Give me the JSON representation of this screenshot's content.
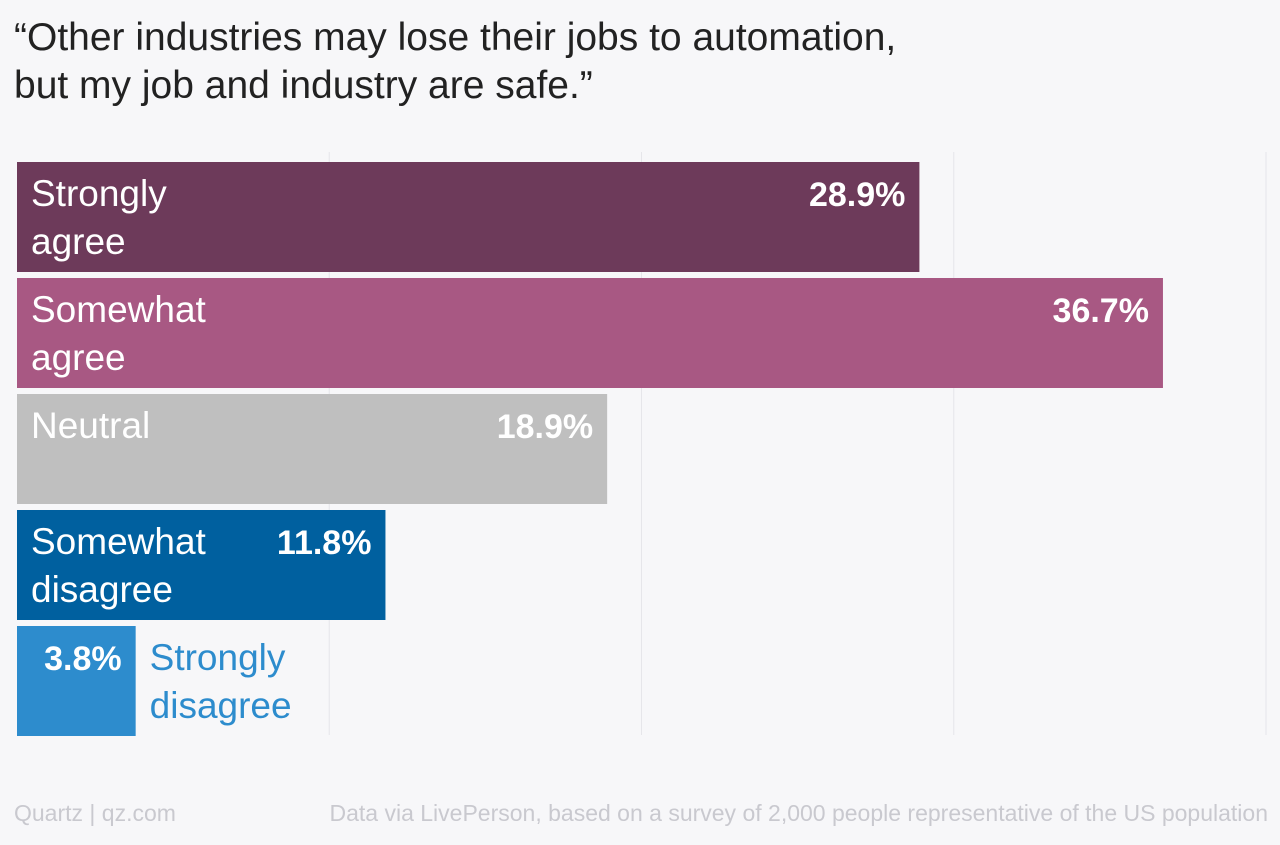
{
  "title_lines": [
    "“Other industries may lose their jobs to automation,",
    "but my job and industry are safe.”"
  ],
  "chart_data": {
    "type": "bar",
    "orientation": "horizontal",
    "title": "“Other industries may lose their jobs to automation, but my job and industry are safe.”",
    "categories": [
      "Strongly agree",
      "Somewhat agree",
      "Neutral",
      "Somewhat disagree",
      "Strongly disagree"
    ],
    "category_label_lines": [
      [
        "Strongly",
        "agree"
      ],
      [
        "Somewhat",
        "agree"
      ],
      [
        "Neutral"
      ],
      [
        "Somewhat",
        "disagree"
      ],
      [
        "Strongly",
        "disagree"
      ]
    ],
    "values": [
      28.9,
      36.7,
      18.9,
      11.8,
      3.8
    ],
    "value_labels": [
      "28.9%",
      "36.7%",
      "18.9%",
      "11.8%",
      "3.8%"
    ],
    "colors": [
      "#6d3a5a",
      "#a85883",
      "#bfbfbf",
      "#00609f",
      "#2d8ccd"
    ],
    "outside_label_color": "#2d8ccd",
    "xlim": [
      0,
      40
    ],
    "xticks": [
      0,
      10,
      20,
      30,
      40
    ],
    "grid": true
  },
  "footer": {
    "brand": "Quartz | qz.com",
    "source_prefix": "Data via ",
    "source_name": "LivePerson",
    "source_rest": ", based on a survey of 2,000 people representative of the US population"
  }
}
